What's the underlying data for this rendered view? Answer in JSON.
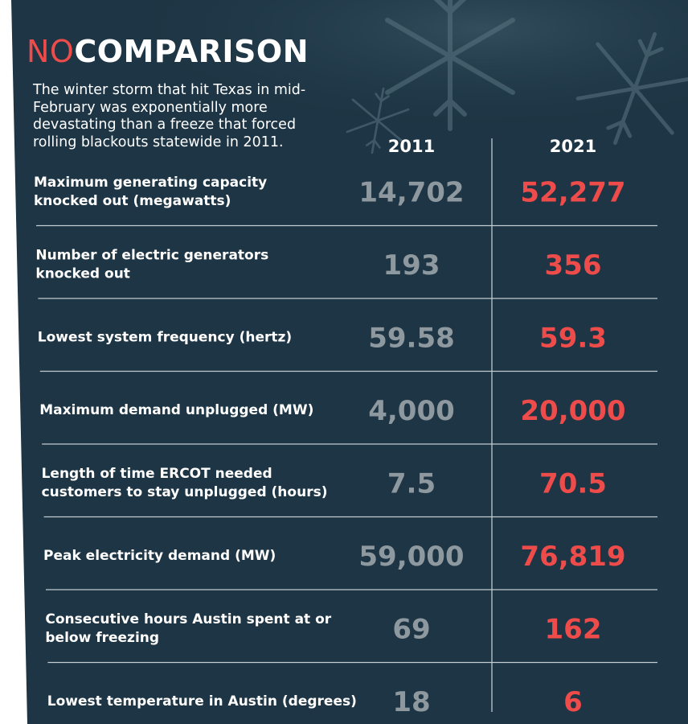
{
  "headline": {
    "accent_word": "NO",
    "rest": "COMPARISON"
  },
  "intro": "The winter storm that hit Texas in mid-February was exponentially more devastating than a freeze that forced rolling blackouts statewide in 2011.",
  "colors": {
    "background": "#1d3544",
    "accent_red": "#ee4b4b",
    "value_gray": "#8e989f",
    "text": "#ffffff"
  },
  "chart_data": {
    "type": "table",
    "columns": [
      "2011",
      "2021"
    ],
    "rows": [
      {
        "label": [
          "Maximum generating capacity",
          "knocked out (megawatts)"
        ],
        "v2011": "14,702",
        "v2021": "52,277"
      },
      {
        "label": [
          "Number of electric generators",
          "knocked out"
        ],
        "v2011": "193",
        "v2021": "356"
      },
      {
        "label": [
          "Lowest system frequency (hertz)"
        ],
        "v2011": "59.58",
        "v2021": "59.3"
      },
      {
        "label": [
          "Maximum demand unplugged (MW)"
        ],
        "v2011": "4,000",
        "v2021": "20,000"
      },
      {
        "label": [
          "Length of time ERCOT needed",
          "customers to stay unplugged (hours)"
        ],
        "v2011": "7.5",
        "v2021": "70.5"
      },
      {
        "label": [
          "Peak electricity demand (MW)"
        ],
        "v2011": "59,000",
        "v2021": "76,819"
      },
      {
        "label": [
          "Consecutive hours Austin spent at or",
          "below freezing"
        ],
        "v2011": "69",
        "v2021": "162"
      },
      {
        "label": [
          "Lowest temperature in Austin (degrees)"
        ],
        "v2011": "18",
        "v2021": "6"
      }
    ]
  }
}
